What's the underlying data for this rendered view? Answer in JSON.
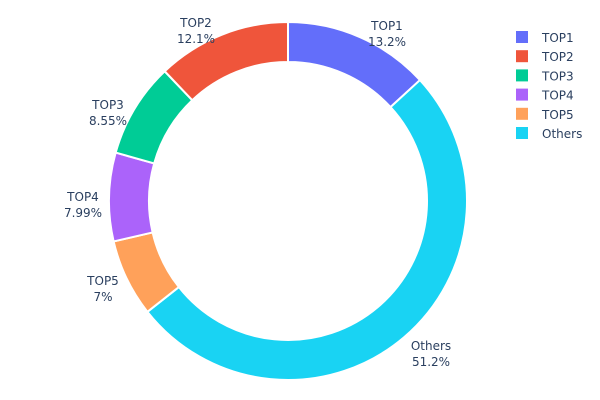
{
  "chart_data": {
    "type": "pie",
    "hole": true,
    "direction": "clockwise",
    "labels": [
      "TOP1",
      "Others",
      "TOP5",
      "TOP4",
      "TOP3",
      "TOP2"
    ],
    "values": [
      13.2,
      51.2,
      7,
      7.99,
      8.55,
      12.1
    ],
    "value_labels": [
      "13.2%",
      "51.2%",
      "7%",
      "7.99%",
      "8.55%",
      "12.1%"
    ],
    "colors": [
      "#636efa",
      "#19d3f3",
      "#ffa15a",
      "#ab63fa",
      "#00cc96",
      "#ef553b"
    ],
    "legend": {
      "placement": "top-right",
      "entries": [
        "TOP1",
        "TOP2",
        "TOP3",
        "TOP4",
        "TOP5",
        "Others"
      ],
      "colors": [
        "#636efa",
        "#ef553b",
        "#00cc96",
        "#ab63fa",
        "#ffa15a",
        "#19d3f3"
      ]
    }
  }
}
